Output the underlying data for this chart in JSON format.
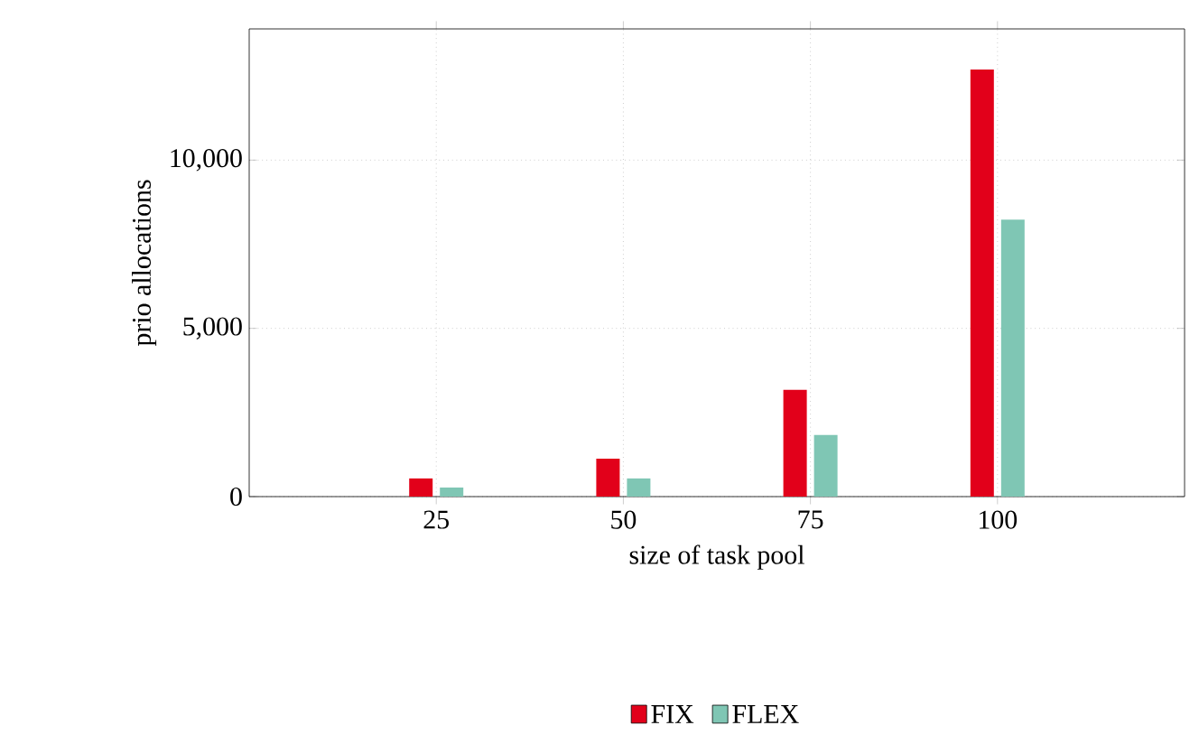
{
  "chart_data": {
    "type": "bar",
    "xlabel": "size of task pool",
    "ylabel": "prio allocations",
    "x": [
      25,
      50,
      75,
      100
    ],
    "series": [
      {
        "name": "FIX",
        "color": "#e2001a",
        "values": [
          540,
          1130,
          3170,
          12690
        ]
      },
      {
        "name": "FLEX",
        "color": "#7fc6b4",
        "values": [
          270,
          540,
          1830,
          8230
        ]
      }
    ],
    "xlim": [
      0,
      125
    ],
    "ylim": [
      0,
      13900
    ],
    "xticks": [
      25,
      50,
      75,
      100
    ],
    "yticks": [
      0,
      {
        "value": 5000,
        "label": "5,000"
      },
      {
        "value": 10000,
        "label": "10,000"
      }
    ],
    "grid": true,
    "legend": "bottom"
  }
}
